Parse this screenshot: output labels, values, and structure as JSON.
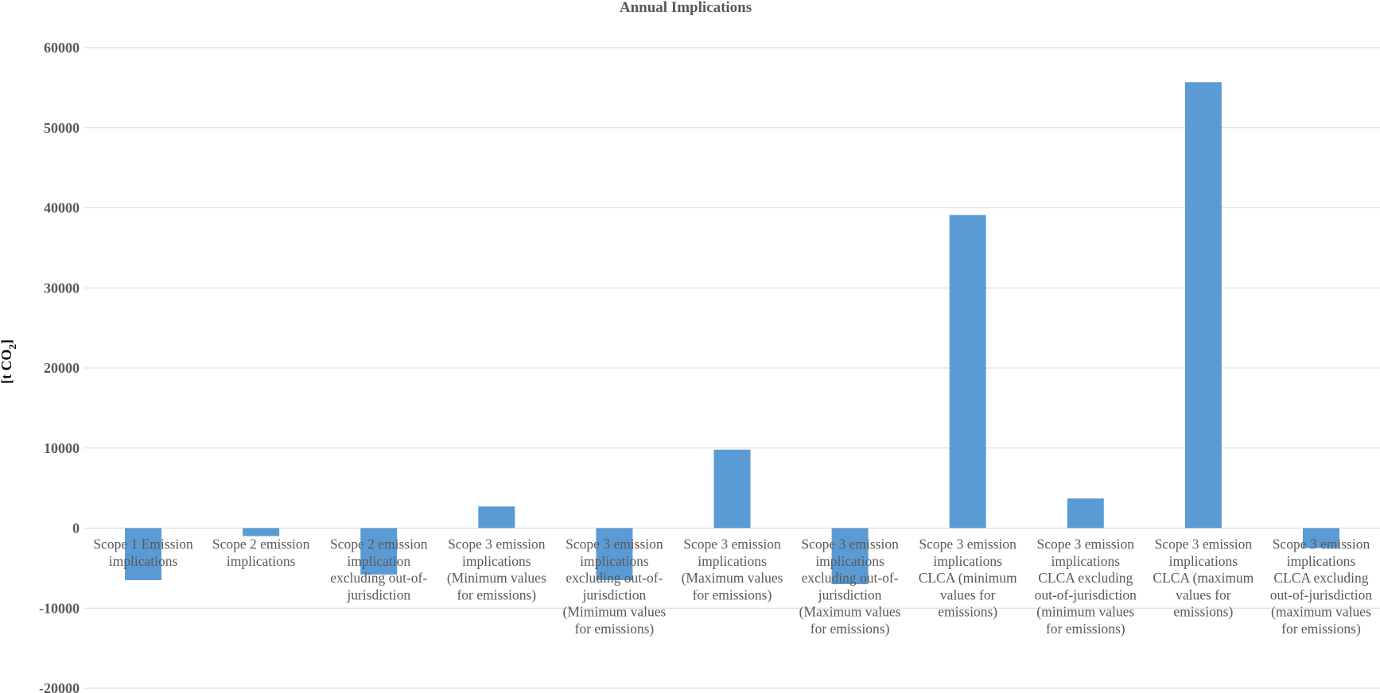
{
  "chart_data": {
    "type": "bar",
    "title": "Annual Implications",
    "ylabel": "[t CO2]",
    "ylabel_main": "[t CO",
    "ylabel_sub": "2",
    "ylabel_end": "]",
    "xlabel": "",
    "ylim": [
      -20000,
      60000
    ],
    "yticks": [
      -20000,
      -10000,
      0,
      10000,
      20000,
      30000,
      40000,
      50000,
      60000
    ],
    "grid": true,
    "legend": "none",
    "bar_color": "#5B9BD5",
    "categories": [
      [
        "Scope 1 Emission",
        "implications"
      ],
      [
        "Scope 2 emission",
        "implications"
      ],
      [
        "Scope 2 emission",
        "implication",
        "excluding out-of-",
        "jurisdiction"
      ],
      [
        "Scope 3 emission",
        "implications",
        "(Minimum values",
        "for emissions)"
      ],
      [
        "Scope 3 emission",
        "implications",
        "excluding out-of-",
        "jurisdiction",
        "(Mimimum values",
        "for emissions)"
      ],
      [
        "Scope 3 emission",
        "implications",
        "(Maximum values",
        "for emissions)"
      ],
      [
        "Scope 3 emission",
        "implications",
        "excluding out-of-",
        "jurisdiction",
        "(Maximum values",
        "for emissions)"
      ],
      [
        "Scope 3 emission",
        "implications",
        "CLCA (minimum",
        "values for",
        "emissions)"
      ],
      [
        "Scope 3 emission",
        "implications",
        "CLCA excluding",
        "out-of-jurisdiction",
        "(minimum values",
        "for emissions)"
      ],
      [
        "Scope 3 emission",
        "implications",
        "CLCA (maximum",
        "values for",
        "emissions)"
      ],
      [
        "Scope 3 emission",
        "implications",
        "CLCA excluding",
        "out-of-jurisdiction",
        "(maximum values",
        "for emissions)"
      ]
    ],
    "values": [
      -6500,
      -1000,
      -5800,
      2700,
      -6500,
      9800,
      -7000,
      39100,
      3700,
      55700,
      -2500
    ]
  }
}
